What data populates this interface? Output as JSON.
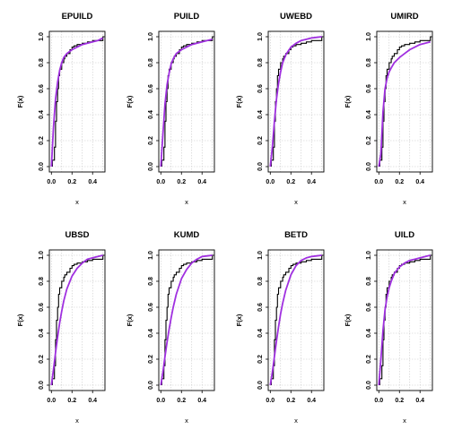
{
  "chart_data": [
    {
      "type": "line",
      "title": "EPUILD",
      "xlabel": "x",
      "ylabel": "F(x)",
      "xlim": [
        -0.02,
        0.52
      ],
      "ylim": [
        0,
        1
      ],
      "xticks": [
        "0.0",
        "0.2",
        "0.4"
      ],
      "yticks": [
        "0.0",
        "0.2",
        "0.4",
        "0.6",
        "0.8",
        "1.0"
      ],
      "grid": true,
      "series": [
        {
          "type": "step",
          "color": "#000000",
          "x": [
            0.01,
            0.03,
            0.04,
            0.05,
            0.06,
            0.07,
            0.08,
            0.1,
            0.12,
            0.13,
            0.15,
            0.18,
            0.2,
            0.22,
            0.25,
            0.3,
            0.35,
            0.4,
            0.45,
            0.5
          ],
          "y": [
            0.05,
            0.15,
            0.35,
            0.5,
            0.6,
            0.7,
            0.75,
            0.8,
            0.83,
            0.85,
            0.87,
            0.9,
            0.92,
            0.93,
            0.94,
            0.95,
            0.96,
            0.97,
            0.97,
            1.0
          ]
        },
        {
          "type": "line",
          "color": "#a030e0",
          "x": [
            0.0,
            0.02,
            0.04,
            0.06,
            0.08,
            0.1,
            0.12,
            0.15,
            0.2,
            0.25,
            0.3,
            0.35,
            0.4,
            0.45,
            0.5
          ],
          "y": [
            0.0,
            0.3,
            0.52,
            0.65,
            0.74,
            0.8,
            0.84,
            0.87,
            0.9,
            0.92,
            0.94,
            0.95,
            0.96,
            0.97,
            0.99
          ]
        }
      ]
    },
    {
      "type": "line",
      "title": "PUILD",
      "xlabel": "x",
      "ylabel": "F(x)",
      "xlim": [
        -0.02,
        0.52
      ],
      "ylim": [
        0,
        1
      ],
      "xticks": [
        "0.0",
        "0.2",
        "0.4"
      ],
      "yticks": [
        "0.0",
        "0.2",
        "0.4",
        "0.6",
        "0.8",
        "1.0"
      ],
      "grid": true,
      "series": [
        {
          "type": "step",
          "color": "#000000",
          "x": [
            0.01,
            0.03,
            0.04,
            0.05,
            0.06,
            0.07,
            0.08,
            0.1,
            0.12,
            0.13,
            0.15,
            0.18,
            0.2,
            0.22,
            0.25,
            0.3,
            0.35,
            0.4,
            0.45,
            0.5
          ],
          "y": [
            0.05,
            0.15,
            0.35,
            0.5,
            0.6,
            0.7,
            0.75,
            0.8,
            0.83,
            0.85,
            0.87,
            0.9,
            0.92,
            0.93,
            0.94,
            0.95,
            0.96,
            0.97,
            0.97,
            1.0
          ]
        },
        {
          "type": "line",
          "color": "#a030e0",
          "x": [
            0.0,
            0.02,
            0.04,
            0.06,
            0.08,
            0.1,
            0.12,
            0.15,
            0.2,
            0.25,
            0.3,
            0.35,
            0.4,
            0.45,
            0.5
          ],
          "y": [
            0.0,
            0.25,
            0.48,
            0.63,
            0.72,
            0.79,
            0.83,
            0.87,
            0.9,
            0.92,
            0.94,
            0.95,
            0.96,
            0.97,
            0.98
          ]
        }
      ]
    },
    {
      "type": "line",
      "title": "UWEBD",
      "xlabel": "x",
      "ylabel": "F(x)",
      "xlim": [
        -0.02,
        0.52
      ],
      "ylim": [
        0,
        1
      ],
      "xticks": [
        "0.0",
        "0.2",
        "0.4"
      ],
      "yticks": [
        "0.0",
        "0.2",
        "0.4",
        "0.6",
        "0.8",
        "1.0"
      ],
      "grid": true,
      "series": [
        {
          "type": "step",
          "color": "#000000",
          "x": [
            0.01,
            0.03,
            0.04,
            0.05,
            0.06,
            0.07,
            0.08,
            0.1,
            0.12,
            0.13,
            0.15,
            0.18,
            0.2,
            0.22,
            0.25,
            0.3,
            0.35,
            0.4,
            0.45,
            0.5
          ],
          "y": [
            0.05,
            0.15,
            0.35,
            0.5,
            0.6,
            0.7,
            0.75,
            0.8,
            0.83,
            0.85,
            0.87,
            0.9,
            0.92,
            0.93,
            0.94,
            0.95,
            0.96,
            0.97,
            0.97,
            1.0
          ]
        },
        {
          "type": "line",
          "color": "#a030e0",
          "x": [
            0.0,
            0.02,
            0.04,
            0.06,
            0.08,
            0.1,
            0.12,
            0.15,
            0.2,
            0.25,
            0.3,
            0.35,
            0.4,
            0.45,
            0.5
          ],
          "y": [
            0.0,
            0.15,
            0.35,
            0.52,
            0.64,
            0.73,
            0.8,
            0.86,
            0.92,
            0.95,
            0.97,
            0.98,
            0.99,
            0.995,
            1.0
          ]
        }
      ]
    },
    {
      "type": "line",
      "title": "UMIRD",
      "xlabel": "x",
      "ylabel": "F(x)",
      "xlim": [
        -0.02,
        0.52
      ],
      "ylim": [
        0,
        1
      ],
      "xticks": [
        "0.0",
        "0.2",
        "0.4"
      ],
      "yticks": [
        "0.0",
        "0.2",
        "0.4",
        "0.6",
        "0.8",
        "1.0"
      ],
      "grid": true,
      "series": [
        {
          "type": "step",
          "color": "#000000",
          "x": [
            0.01,
            0.03,
            0.04,
            0.05,
            0.06,
            0.07,
            0.08,
            0.1,
            0.12,
            0.13,
            0.15,
            0.18,
            0.2,
            0.22,
            0.25,
            0.3,
            0.35,
            0.4,
            0.45,
            0.5
          ],
          "y": [
            0.05,
            0.15,
            0.35,
            0.5,
            0.6,
            0.7,
            0.75,
            0.8,
            0.83,
            0.85,
            0.87,
            0.9,
            0.92,
            0.93,
            0.94,
            0.95,
            0.96,
            0.97,
            0.97,
            1.0
          ]
        },
        {
          "type": "line",
          "color": "#a030e0",
          "x": [
            0.0,
            0.02,
            0.04,
            0.06,
            0.08,
            0.1,
            0.12,
            0.15,
            0.2,
            0.25,
            0.3,
            0.35,
            0.4,
            0.45,
            0.5
          ],
          "y": [
            0.0,
            0.1,
            0.42,
            0.6,
            0.68,
            0.73,
            0.76,
            0.8,
            0.84,
            0.87,
            0.9,
            0.92,
            0.94,
            0.95,
            0.96
          ]
        }
      ]
    },
    {
      "type": "line",
      "title": "UBSD",
      "xlabel": "x",
      "ylabel": "F(x)",
      "xlim": [
        -0.02,
        0.52
      ],
      "ylim": [
        0,
        1
      ],
      "xticks": [
        "0.0",
        "0.2",
        "0.4"
      ],
      "yticks": [
        "0.0",
        "0.2",
        "0.4",
        "0.6",
        "0.8",
        "1.0"
      ],
      "grid": true,
      "series": [
        {
          "type": "step",
          "color": "#000000",
          "x": [
            0.01,
            0.03,
            0.04,
            0.05,
            0.06,
            0.07,
            0.08,
            0.1,
            0.12,
            0.13,
            0.15,
            0.18,
            0.2,
            0.22,
            0.25,
            0.3,
            0.35,
            0.4,
            0.45,
            0.5
          ],
          "y": [
            0.05,
            0.15,
            0.35,
            0.5,
            0.6,
            0.7,
            0.75,
            0.8,
            0.83,
            0.85,
            0.87,
            0.9,
            0.92,
            0.93,
            0.94,
            0.95,
            0.96,
            0.97,
            0.97,
            1.0
          ]
        },
        {
          "type": "line",
          "color": "#a030e0",
          "x": [
            0.0,
            0.02,
            0.04,
            0.06,
            0.08,
            0.1,
            0.12,
            0.15,
            0.2,
            0.25,
            0.3,
            0.35,
            0.4,
            0.45,
            0.5
          ],
          "y": [
            0.0,
            0.12,
            0.25,
            0.37,
            0.48,
            0.57,
            0.65,
            0.74,
            0.84,
            0.9,
            0.94,
            0.97,
            0.98,
            0.99,
            1.0
          ]
        }
      ]
    },
    {
      "type": "line",
      "title": "KUMD",
      "xlabel": "x",
      "ylabel": "F(x)",
      "xlim": [
        -0.02,
        0.52
      ],
      "ylim": [
        0,
        1
      ],
      "xticks": [
        "0.0",
        "0.2",
        "0.4"
      ],
      "yticks": [
        "0.0",
        "0.2",
        "0.4",
        "0.6",
        "0.8",
        "1.0"
      ],
      "grid": true,
      "series": [
        {
          "type": "step",
          "color": "#000000",
          "x": [
            0.01,
            0.03,
            0.04,
            0.05,
            0.06,
            0.07,
            0.08,
            0.1,
            0.12,
            0.13,
            0.15,
            0.18,
            0.2,
            0.22,
            0.25,
            0.3,
            0.35,
            0.4,
            0.45,
            0.5
          ],
          "y": [
            0.05,
            0.15,
            0.35,
            0.5,
            0.6,
            0.7,
            0.75,
            0.8,
            0.83,
            0.85,
            0.87,
            0.9,
            0.92,
            0.93,
            0.94,
            0.95,
            0.96,
            0.97,
            0.97,
            1.0
          ]
        },
        {
          "type": "line",
          "color": "#a030e0",
          "x": [
            0.0,
            0.02,
            0.04,
            0.06,
            0.08,
            0.1,
            0.12,
            0.15,
            0.2,
            0.25,
            0.3,
            0.35,
            0.4,
            0.45,
            0.5
          ],
          "y": [
            0.0,
            0.1,
            0.22,
            0.33,
            0.43,
            0.52,
            0.6,
            0.7,
            0.82,
            0.89,
            0.94,
            0.97,
            0.99,
            0.995,
            1.0
          ]
        }
      ]
    },
    {
      "type": "line",
      "title": "BETD",
      "xlabel": "x",
      "ylabel": "F(x)",
      "xlim": [
        -0.02,
        0.52
      ],
      "ylim": [
        0,
        1
      ],
      "xticks": [
        "0.0",
        "0.2",
        "0.4"
      ],
      "yticks": [
        "0.0",
        "0.2",
        "0.4",
        "0.6",
        "0.8",
        "1.0"
      ],
      "grid": true,
      "series": [
        {
          "type": "step",
          "color": "#000000",
          "x": [
            0.01,
            0.03,
            0.04,
            0.05,
            0.06,
            0.07,
            0.08,
            0.1,
            0.12,
            0.13,
            0.15,
            0.18,
            0.2,
            0.22,
            0.25,
            0.3,
            0.35,
            0.4,
            0.45,
            0.5
          ],
          "y": [
            0.05,
            0.15,
            0.35,
            0.5,
            0.6,
            0.7,
            0.75,
            0.8,
            0.83,
            0.85,
            0.87,
            0.9,
            0.92,
            0.93,
            0.94,
            0.95,
            0.96,
            0.97,
            0.97,
            1.0
          ]
        },
        {
          "type": "line",
          "color": "#a030e0",
          "x": [
            0.0,
            0.02,
            0.04,
            0.06,
            0.08,
            0.1,
            0.12,
            0.15,
            0.2,
            0.25,
            0.3,
            0.35,
            0.4,
            0.45,
            0.5
          ],
          "y": [
            0.0,
            0.1,
            0.22,
            0.34,
            0.45,
            0.55,
            0.63,
            0.73,
            0.85,
            0.92,
            0.96,
            0.98,
            0.99,
            0.995,
            1.0
          ]
        }
      ]
    },
    {
      "type": "line",
      "title": "UILD",
      "xlabel": "x",
      "ylabel": "F(x)",
      "xlim": [
        -0.02,
        0.52
      ],
      "ylim": [
        0,
        1
      ],
      "xticks": [
        "0.0",
        "0.2",
        "0.4"
      ],
      "yticks": [
        "0.0",
        "0.2",
        "0.4",
        "0.6",
        "0.8",
        "1.0"
      ],
      "grid": true,
      "series": [
        {
          "type": "step",
          "color": "#000000",
          "x": [
            0.01,
            0.03,
            0.04,
            0.05,
            0.06,
            0.07,
            0.08,
            0.1,
            0.12,
            0.13,
            0.15,
            0.18,
            0.2,
            0.22,
            0.25,
            0.3,
            0.35,
            0.4,
            0.45,
            0.5
          ],
          "y": [
            0.05,
            0.15,
            0.35,
            0.5,
            0.6,
            0.7,
            0.75,
            0.8,
            0.83,
            0.85,
            0.87,
            0.9,
            0.92,
            0.93,
            0.94,
            0.95,
            0.96,
            0.97,
            0.97,
            1.0
          ]
        },
        {
          "type": "line",
          "color": "#a030e0",
          "x": [
            0.0,
            0.02,
            0.04,
            0.06,
            0.08,
            0.1,
            0.12,
            0.15,
            0.2,
            0.25,
            0.3,
            0.35,
            0.4,
            0.45,
            0.5
          ],
          "y": [
            0.0,
            0.2,
            0.42,
            0.58,
            0.68,
            0.75,
            0.8,
            0.86,
            0.91,
            0.94,
            0.96,
            0.97,
            0.98,
            0.99,
            1.0
          ]
        }
      ]
    }
  ]
}
